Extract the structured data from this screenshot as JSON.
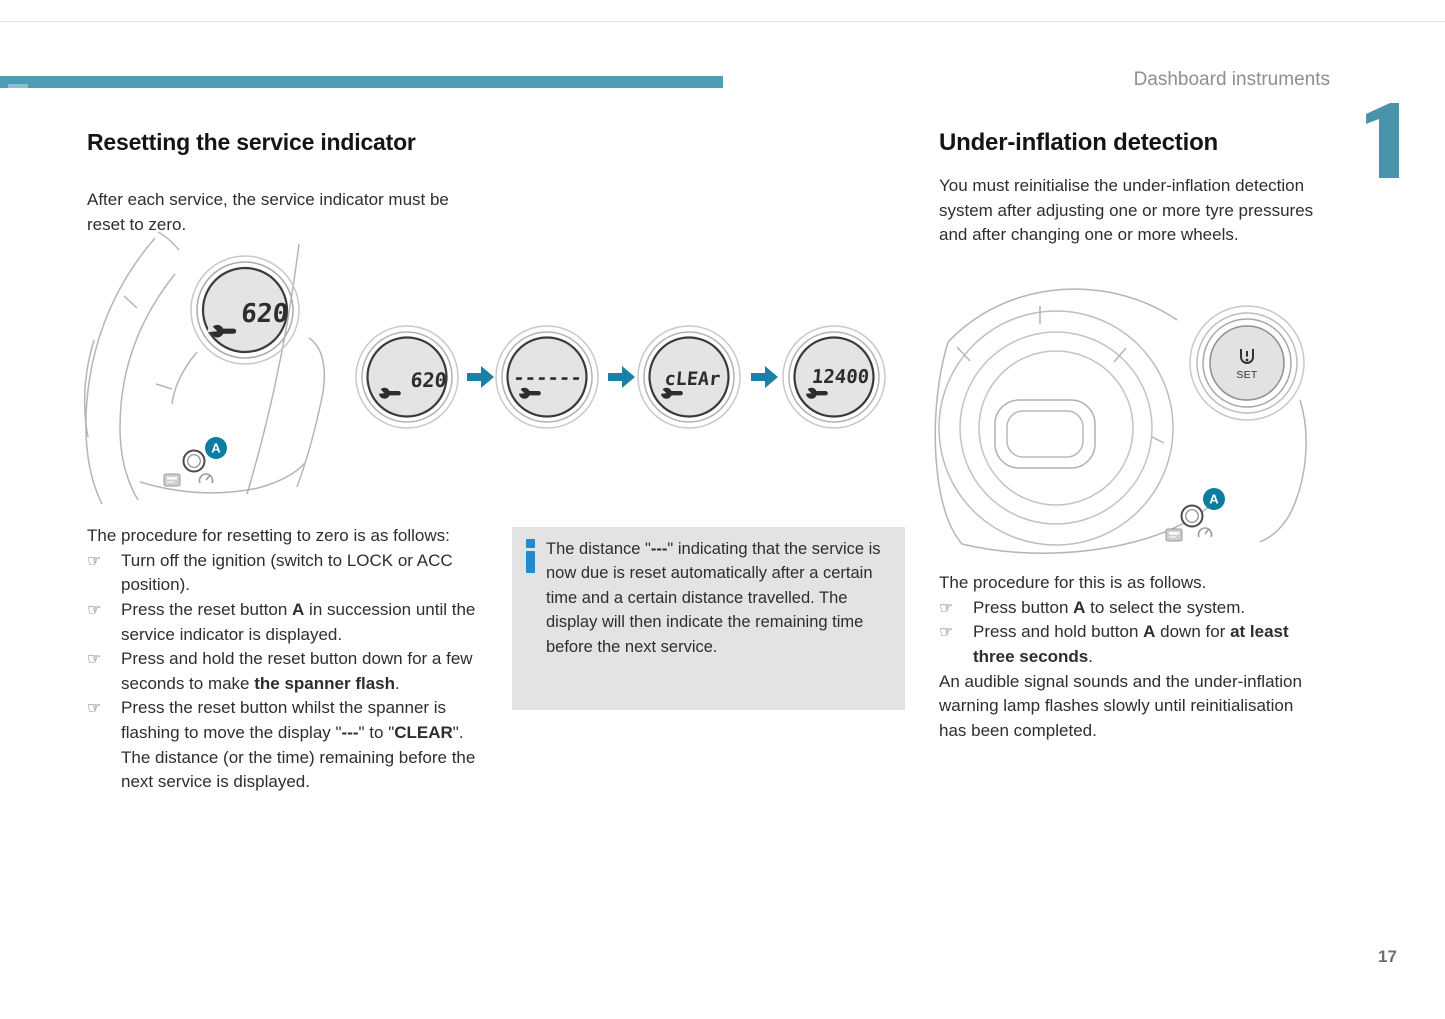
{
  "glyphs": {
    "bullet": "☞"
  },
  "accent": {
    "teal_bar": "#4e9db6",
    "chapter": "#4a93ad",
    "arrow": "#1a80a5",
    "badge": "#0c7ca1",
    "info_icon": "#1e8cce"
  },
  "header": {
    "title": "Dashboard instruments",
    "chapter_number": "1"
  },
  "footer": {
    "page_number": "17"
  },
  "left": {
    "title": "Resetting the service indicator",
    "intro": "After each service, the service indicator must be reset to zero.",
    "procedure_intro": "The procedure for resetting to zero is as follows:",
    "steps": [
      [
        {
          "t": "Turn off the ignition (switch to LOCK or ACC position)."
        }
      ],
      [
        {
          "t": "Press the reset button "
        },
        {
          "t": "A",
          "b": true
        },
        {
          "t": " in succession until the service indicator is displayed."
        }
      ],
      [
        {
          "t": "Press and hold the reset button down for a few seconds to make "
        },
        {
          "t": "the spanner flash",
          "b": true
        },
        {
          "t": "."
        }
      ],
      [
        {
          "t": "Press the reset button whilst the spanner is flashing to move the display \""
        },
        {
          "t": "---",
          "b": true
        },
        {
          "t": "\" to \""
        },
        {
          "t": "CLEAR",
          "b": true
        },
        {
          "t": "\"."
        }
      ]
    ],
    "after_steps": "The distance (or the time) remaining before the next service is displayed.",
    "figure": {
      "main_display": "620",
      "button_label": "A",
      "sequence": [
        "620",
        "------",
        "cLEAr",
        "12400"
      ]
    }
  },
  "info_box": {
    "text": [
      {
        "t": "The distance \""
      },
      {
        "t": "---",
        "b": true
      },
      {
        "t": "\" indicating that the service is now due is reset automatically after a certain time and a certain distance travelled. The display will then indicate the remaining time before the next service."
      }
    ]
  },
  "right": {
    "title": "Under-inflation detection",
    "intro": "You must reinitialise the under-inflation detection system after adjusting one or more tyre pressures and after changing one or more wheels.",
    "procedure_intro": "The procedure for this is as follows.",
    "steps": [
      [
        {
          "t": "Press button "
        },
        {
          "t": "A",
          "b": true
        },
        {
          "t": " to select the system."
        }
      ],
      [
        {
          "t": "Press and hold button "
        },
        {
          "t": "A",
          "b": true
        },
        {
          "t": " down for "
        },
        {
          "t": "at least three seconds",
          "b": true
        },
        {
          "t": "."
        }
      ]
    ],
    "outro": "An audible signal sounds and the under-inflation warning lamp flashes slowly until reinitialisation has been completed.",
    "figure": {
      "set_label": "SET",
      "button_label": "A"
    }
  }
}
